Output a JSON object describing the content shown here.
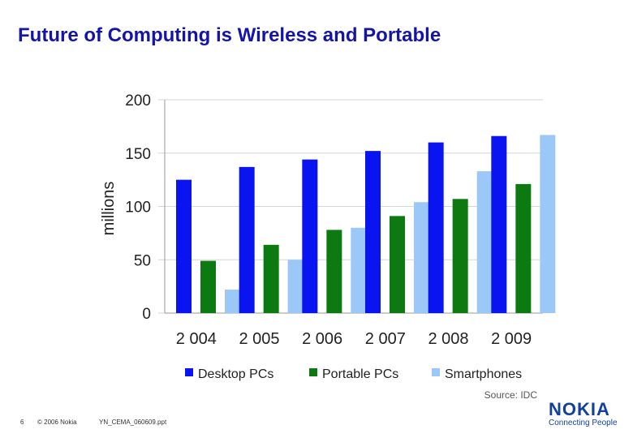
{
  "slide": {
    "title": "Future of Computing is Wireless and Portable",
    "source": "Source: IDC",
    "page_number": "6",
    "copyright": "© 2006 Nokia",
    "filename": "YN_CEMA_060609.ppt",
    "logo_word": "NOKIA",
    "logo_tagline": "Connecting People"
  },
  "colors": {
    "title": "#1414a8",
    "desktop": "#0a14f0",
    "portable": "#0c7a10",
    "smartphones": "#9cc8f8",
    "grid": "#d6d6d6"
  },
  "chart_data": {
    "type": "bar",
    "categories": [
      "2 004",
      "2 005",
      "2 006",
      "2 007",
      "2 008",
      "2 009"
    ],
    "series": [
      {
        "name": "Desktop PCs",
        "values": [
          125,
          137,
          144,
          152,
          160,
          166
        ]
      },
      {
        "name": "Portable PCs",
        "values": [
          49,
          64,
          78,
          91,
          107,
          121
        ]
      },
      {
        "name": "Smartphones",
        "values": [
          22,
          50,
          80,
          104,
          133,
          167
        ]
      }
    ],
    "ylabel": "millions",
    "xlabel": "",
    "ylim": [
      0,
      200
    ],
    "yticks": [
      0,
      50,
      100,
      150,
      200
    ],
    "grid": true,
    "legend": "bottom"
  }
}
